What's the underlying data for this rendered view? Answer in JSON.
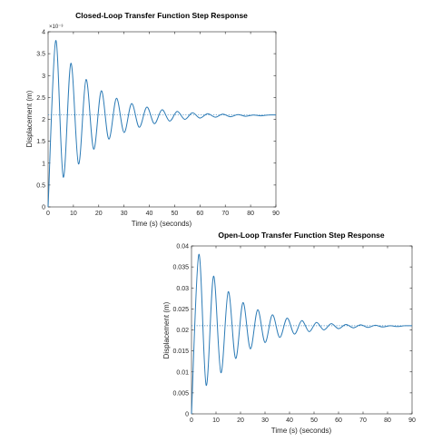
{
  "chart_data": [
    {
      "type": "line",
      "title": "Closed-Loop Transfer Function Step Response",
      "xlabel": "Time (s) (seconds)",
      "ylabel": "Displacement (m)",
      "xlim": [
        0,
        90
      ],
      "ylim": [
        0,
        0.004
      ],
      "y_multiplier_label": "×10⁻³",
      "x_ticks": [
        "0",
        "10",
        "20",
        "30",
        "40",
        "50",
        "60",
        "70",
        "80",
        "90"
      ],
      "y_ticks": [
        "0",
        "0.5",
        "1",
        "1.5",
        "2",
        "2.5",
        "3",
        "3.5",
        "4"
      ],
      "grid": false,
      "steady_state": 0.0021,
      "series": [
        {
          "x": [
            0,
            3,
            6,
            9,
            12,
            15,
            18,
            21,
            24,
            27,
            30,
            33,
            36,
            39,
            42,
            45,
            48,
            51,
            54,
            57,
            60,
            63,
            66,
            69,
            72,
            75,
            78,
            81,
            84,
            87,
            90
          ],
          "values": [
            0,
            0.0038,
            0.00068,
            0.00328,
            0.00098,
            0.00291,
            0.00132,
            0.00265,
            0.00155,
            0.00248,
            0.0017,
            0.00236,
            0.00182,
            0.00228,
            0.0019,
            0.00222,
            0.00196,
            0.00218,
            0.002,
            0.00215,
            0.00203,
            0.00213,
            0.00205,
            0.00212,
            0.00206,
            0.00211,
            0.00207,
            0.0021,
            0.00208,
            0.0021,
            0.0021
          ]
        }
      ]
    },
    {
      "type": "line",
      "title": "Open-Loop Transfer Function Step Response",
      "xlabel": "Time (s) (seconds)",
      "ylabel": "Displacement (m)",
      "xlim": [
        0,
        90
      ],
      "ylim": [
        0,
        0.04
      ],
      "y_multiplier_label": "",
      "x_ticks": [
        "0",
        "10",
        "20",
        "30",
        "40",
        "50",
        "60",
        "70",
        "80",
        "90"
      ],
      "y_ticks": [
        "0",
        "0.005",
        "0.01",
        "0.015",
        "0.02",
        "0.025",
        "0.03",
        "0.035",
        "0.04"
      ],
      "grid": false,
      "steady_state": 0.021,
      "series": [
        {
          "x": [
            0,
            3,
            6,
            9,
            12,
            15,
            18,
            21,
            24,
            27,
            30,
            33,
            36,
            39,
            42,
            45,
            48,
            51,
            54,
            57,
            60,
            63,
            66,
            69,
            72,
            75,
            78,
            81,
            84,
            87,
            90
          ],
          "values": [
            0,
            0.038,
            0.0068,
            0.0328,
            0.0098,
            0.0291,
            0.0132,
            0.0265,
            0.0155,
            0.0248,
            0.017,
            0.0236,
            0.0182,
            0.0228,
            0.019,
            0.0222,
            0.0196,
            0.0218,
            0.02,
            0.0215,
            0.0203,
            0.0213,
            0.0205,
            0.0212,
            0.0206,
            0.0211,
            0.0207,
            0.021,
            0.0208,
            0.021,
            0.021
          ]
        }
      ]
    }
  ]
}
